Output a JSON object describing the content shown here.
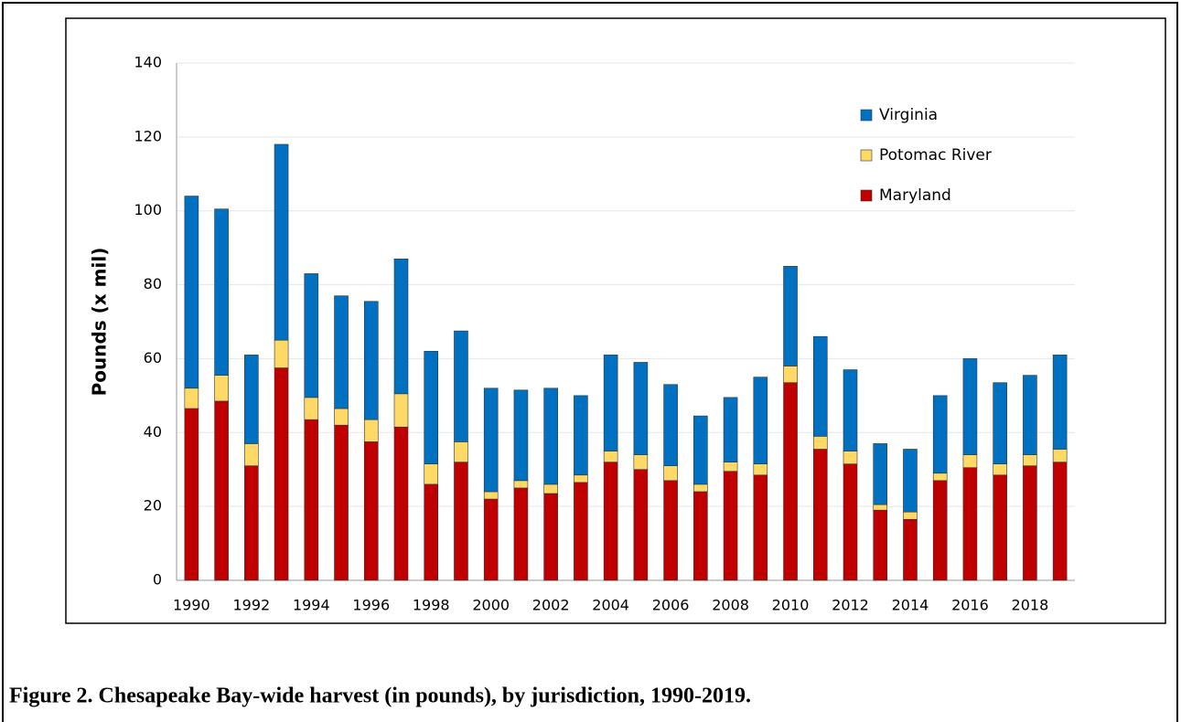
{
  "chart_data": {
    "type": "stacked-bar",
    "caption": "Figure 2. Chesapeake Bay-wide harvest (in pounds), by jurisdiction, 1990-2019.",
    "ylabel": "Pounds (x mil)",
    "categories": [
      "1990",
      null,
      "1992",
      null,
      "1994",
      null,
      "1996",
      null,
      "1998",
      null,
      "2000",
      null,
      "2002",
      null,
      "2004",
      null,
      "2006",
      null,
      "2008",
      null,
      "2010",
      null,
      "2012",
      null,
      "2014",
      null,
      "2016",
      null,
      "2018",
      null
    ],
    "series": [
      {
        "name": "Maryland",
        "color": "#c00000",
        "values": [
          46.5,
          48.5,
          31,
          57.5,
          43.5,
          42,
          37.5,
          41.5,
          26,
          32,
          22,
          25,
          23.5,
          26.5,
          32,
          30,
          27,
          24,
          29.5,
          28.5,
          53.5,
          35.5,
          31.5,
          19,
          16.5,
          27,
          30.5,
          28.5,
          31,
          32
        ]
      },
      {
        "name": "Potomac River",
        "color": "#ffd966",
        "values": [
          5.5,
          7,
          6,
          7.5,
          6,
          4.5,
          6,
          9,
          5.5,
          5.5,
          2,
          2,
          2.5,
          2,
          3,
          4,
          4,
          2,
          2.5,
          3,
          4.5,
          3.5,
          3.5,
          1.5,
          2,
          2,
          3.5,
          3,
          3,
          3.5
        ]
      },
      {
        "name": "Virginia",
        "color": "#0070c0",
        "values": [
          52,
          45,
          24,
          53,
          33.5,
          30.5,
          32,
          36.5,
          30.5,
          30,
          28,
          24.5,
          26,
          21.5,
          26,
          25,
          22,
          18.5,
          17.5,
          23.5,
          27,
          27,
          22,
          16.5,
          17,
          21,
          26,
          22,
          21.5,
          25.5
        ]
      }
    ],
    "ylim": [
      0,
      140
    ],
    "yticks": [
      0,
      20,
      40,
      60,
      80,
      100,
      120,
      140
    ],
    "grid": true
  }
}
